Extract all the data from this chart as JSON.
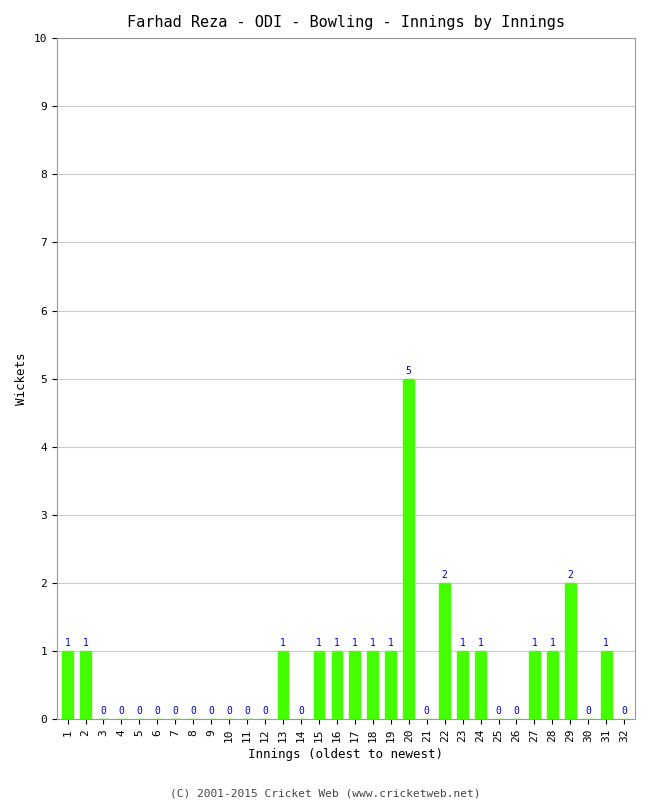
{
  "title": "Farhad Reza - ODI - Bowling - Innings by Innings",
  "xlabel": "Innings (oldest to newest)",
  "ylabel": "Wickets",
  "innings": [
    1,
    2,
    3,
    4,
    5,
    6,
    7,
    8,
    9,
    10,
    11,
    12,
    13,
    14,
    15,
    16,
    17,
    18,
    19,
    20,
    21,
    22,
    23,
    24,
    25,
    26,
    27,
    28,
    29,
    30,
    31,
    32
  ],
  "wickets": [
    1,
    1,
    0,
    0,
    0,
    0,
    0,
    0,
    0,
    0,
    0,
    0,
    1,
    0,
    1,
    1,
    1,
    1,
    1,
    5,
    0,
    2,
    1,
    1,
    0,
    0,
    1,
    1,
    2,
    0,
    1,
    0
  ],
  "bar_color": "#44ff00",
  "bar_edge_color": "#44ff00",
  "label_color": "#0000cc",
  "ylim": [
    0,
    10
  ],
  "yticks": [
    0,
    1,
    2,
    3,
    4,
    5,
    6,
    7,
    8,
    9,
    10
  ],
  "background_color": "#ffffff",
  "grid_color": "#cccccc",
  "title_fontsize": 11,
  "axis_label_fontsize": 9,
  "tick_fontsize": 8,
  "value_label_fontsize": 7,
  "footer_text": "(C) 2001-2015 Cricket Web (www.cricketweb.net)"
}
